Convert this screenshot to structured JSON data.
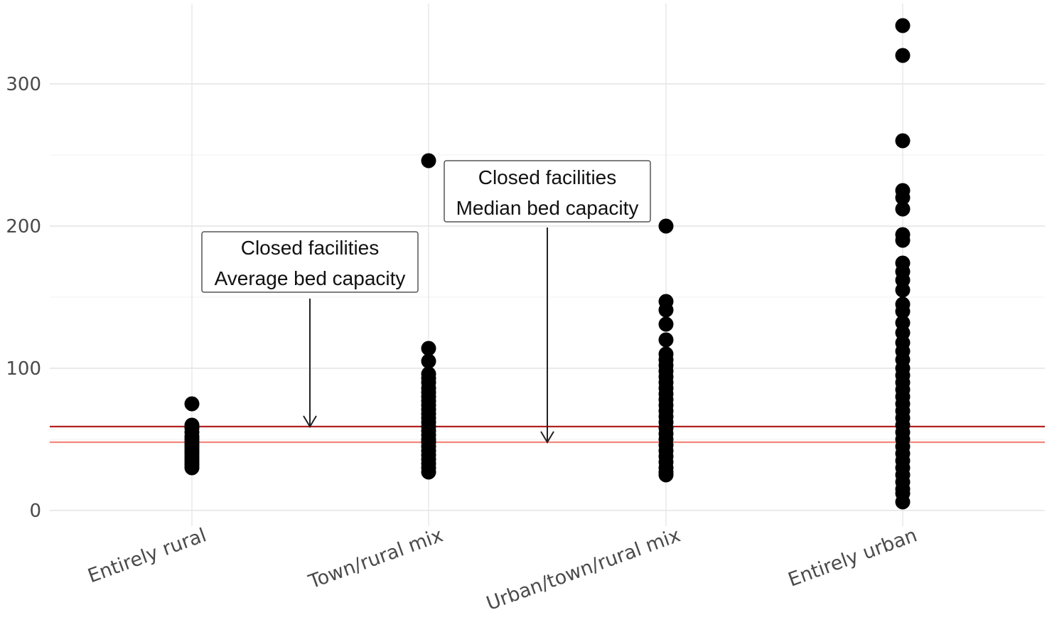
{
  "chart_data": {
    "type": "scatter",
    "title": "",
    "xlabel": "",
    "ylabel": "",
    "ylim": [
      -5,
      345
    ],
    "grid": true,
    "categories": [
      "Entirely rural",
      "Town/rural mix",
      "Urban/town/rural mix",
      "Entirely urban"
    ],
    "y_ticks": [
      "0",
      "100",
      "200",
      "300"
    ],
    "series": [
      {
        "category": "Entirely rural",
        "values": [
          75,
          60,
          58,
          55,
          52,
          50,
          48,
          46,
          44,
          42,
          40,
          38,
          36,
          34,
          32,
          30
        ]
      },
      {
        "category": "Town/rural mix",
        "values": [
          246,
          114,
          105,
          96,
          93,
          90,
          86,
          83,
          80,
          77,
          74,
          71,
          68,
          65,
          62,
          59,
          56,
          53,
          50,
          48,
          45,
          42,
          39,
          36,
          33,
          30,
          27
        ]
      },
      {
        "category": "Urban/town/rural mix",
        "values": [
          200,
          147,
          141,
          131,
          120,
          110,
          106,
          102,
          98,
          94,
          90,
          86,
          82,
          78,
          74,
          70,
          66,
          62,
          58,
          54,
          50,
          46,
          42,
          38,
          34,
          30,
          27,
          25
        ]
      },
      {
        "category": "Entirely urban",
        "values": [
          341,
          320,
          260,
          225,
          220,
          212,
          194,
          190,
          174,
          168,
          162,
          155,
          145,
          140,
          132,
          125,
          118,
          112,
          106,
          100,
          95,
          90,
          85,
          80,
          75,
          70,
          65,
          60,
          55,
          50,
          45,
          40,
          35,
          30,
          25,
          20,
          15,
          12,
          6
        ]
      }
    ],
    "reference_lines": [
      {
        "value": 59,
        "color": "#b22222"
      },
      {
        "value": 48,
        "color": "#f4877e"
      }
    ],
    "annotations": [
      {
        "line1": "Closed facilities",
        "line2": "Average bed capacity",
        "points_to": 59
      },
      {
        "line1": "Closed facilities",
        "line2": "Median bed capacity",
        "points_to": 48
      }
    ],
    "point_color": "#000000",
    "grid_color": "#e6e6e6"
  }
}
